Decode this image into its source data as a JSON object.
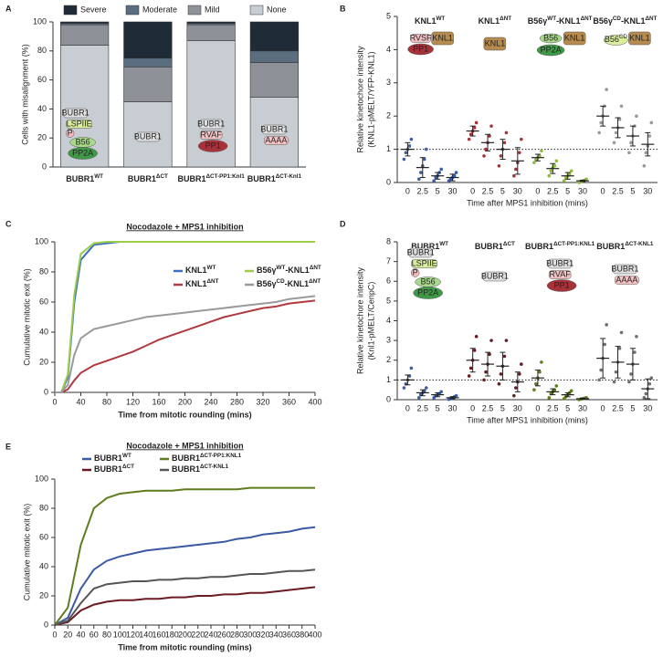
{
  "chart_data": [
    {
      "panel_label": "A",
      "type": "stacked_bar",
      "ylabel": "Cells with misalignment (%)",
      "ylim": [
        0,
        100
      ],
      "yticks": [
        0,
        20,
        40,
        60,
        80,
        100
      ],
      "categories": [
        [
          "BUBR1",
          "WT"
        ],
        [
          "BUBR1",
          "ΔCT"
        ],
        [
          "BUBR1",
          "ΔCT-PP1:Knl1"
        ],
        [
          "BUBR1",
          "ΔCT-Knl1"
        ]
      ],
      "category_colors": [
        "#3a5fa8",
        "#6b1c22",
        "#5f7d1e",
        "#707070"
      ],
      "series": [
        {
          "name": "None",
          "color": "#c8cdd4",
          "values": [
            84,
            45,
            87,
            48
          ]
        },
        {
          "name": "Mild",
          "color": "#8e9298",
          "values": [
            14,
            24,
            11,
            24
          ]
        },
        {
          "name": "Moderate",
          "color": "#5a6e80",
          "values": [
            1,
            6,
            1,
            8
          ]
        },
        {
          "name": "Severe",
          "color": "#1f2b37",
          "values": [
            1,
            25,
            1,
            20
          ]
        }
      ],
      "cartoon_labels": [
        [
          "BUBR1",
          "LSPIIE",
          "P",
          "B56",
          "PP2A"
        ],
        [
          "BUBR1"
        ],
        [
          "BUBR1",
          "RVAF",
          "PP1"
        ],
        [
          "BUBR1",
          "AAAA"
        ]
      ]
    },
    {
      "panel_label": "B",
      "type": "dot_plot",
      "ylabel": [
        "Relative kinetochore intensity",
        "(KNL1-pMELT/YFP-KNL1)"
      ],
      "xlabel": "Time after MPS1 inhibition (mins)",
      "ylim": [
        0,
        5
      ],
      "yticks": [
        0,
        1,
        2,
        3,
        4,
        5
      ],
      "reference_line": 1,
      "categories": [
        "0",
        "2.5",
        "5",
        "30"
      ],
      "groups": [
        {
          "name": [
            "KNL1",
            "WT"
          ],
          "color": "#3a5fa8",
          "means": [
            1.0,
            0.45,
            0.2,
            0.15
          ],
          "errors": [
            0.2,
            0.3,
            0.1,
            0.1
          ],
          "points": [
            [
              0.7,
              0.9,
              1.0,
              1.1,
              1.3
            ],
            [
              0.1,
              0.3,
              0.5,
              0.7,
              1.0
            ],
            [
              0.05,
              0.15,
              0.2,
              0.3,
              0.4
            ],
            [
              0.05,
              0.1,
              0.15,
              0.2,
              0.3
            ]
          ]
        },
        {
          "name": [
            "KNL1",
            "ΔNT"
          ],
          "color": "#a8323a",
          "means": [
            1.55,
            1.2,
            1.0,
            0.65
          ],
          "errors": [
            0.15,
            0.25,
            0.3,
            0.4
          ],
          "points": [
            [
              1.3,
              1.45,
              1.55,
              1.65,
              1.8
            ],
            [
              0.8,
              1.0,
              1.2,
              1.4,
              1.7
            ],
            [
              0.5,
              0.8,
              1.0,
              1.2,
              1.5
            ],
            [
              0.2,
              0.4,
              0.6,
              0.9,
              1.3
            ]
          ]
        },
        {
          "name": [
            "B56γ",
            "WT",
            "-KNL1",
            "ΔNT"
          ],
          "color": "#8fba3c",
          "means": [
            0.75,
            0.42,
            0.2,
            0.05
          ],
          "errors": [
            0.1,
            0.15,
            0.1,
            0.02
          ],
          "points": [
            [
              0.6,
              0.7,
              0.75,
              0.8,
              0.95
            ],
            [
              0.2,
              0.35,
              0.45,
              0.5,
              0.65
            ],
            [
              0.05,
              0.15,
              0.2,
              0.25,
              0.35
            ],
            [
              0.0,
              0.02,
              0.05,
              0.07,
              0.1
            ]
          ]
        },
        {
          "name": [
            "B56γ",
            "CD",
            "-KNL1",
            "ΔNT"
          ],
          "color": "#9a9a9a",
          "means": [
            2.0,
            1.65,
            1.4,
            1.15
          ],
          "errors": [
            0.3,
            0.3,
            0.3,
            0.35
          ],
          "points": [
            [
              1.5,
              1.8,
              2.0,
              2.3,
              2.8
            ],
            [
              1.2,
              1.5,
              1.65,
              1.9,
              2.3
            ],
            [
              0.9,
              1.2,
              1.4,
              1.7,
              2.0
            ],
            [
              0.5,
              0.9,
              1.1,
              1.4,
              1.8
            ]
          ]
        }
      ],
      "cartoon_labels": [
        [
          "RVSF",
          "PP1",
          "KNL1"
        ],
        [
          "KNL1"
        ],
        [
          "B56",
          "PP2A",
          "KNL1"
        ],
        [
          [
            "B56",
            "CD"
          ],
          "KNL1"
        ]
      ]
    },
    {
      "panel_label": "C",
      "type": "line",
      "title": "Nocodazole + MPS1 inhibition",
      "xlabel": "Time from mitotic rounding (mins)",
      "ylabel": "Cumulative mitotic exit (%)",
      "xlim": [
        0,
        400
      ],
      "xticks": [
        0,
        40,
        80,
        120,
        160,
        200,
        240,
        280,
        320,
        360,
        400
      ],
      "ylim": [
        0,
        100
      ],
      "yticks": [
        0,
        20,
        40,
        60,
        80,
        100
      ],
      "x": [
        0,
        10,
        20,
        30,
        40,
        60,
        80,
        100,
        120,
        140,
        160,
        180,
        200,
        220,
        240,
        260,
        280,
        300,
        320,
        340,
        360,
        380,
        400
      ],
      "series": [
        {
          "name": [
            "KNL1",
            "WT"
          ],
          "color": "#3a6fc0",
          "values": [
            0,
            0,
            10,
            60,
            88,
            98,
            99,
            100,
            100,
            100,
            100,
            100,
            100,
            100,
            100,
            100,
            100,
            null,
            null,
            null,
            null,
            null,
            null
          ]
        },
        {
          "name": [
            "B56γ",
            "WT",
            "-KNL1",
            "ΔNT"
          ],
          "color": "#9ccc4a",
          "values": [
            0,
            0,
            12,
            65,
            92,
            99,
            100,
            100,
            100,
            100,
            100,
            100,
            100,
            100,
            100,
            100,
            100,
            100,
            100,
            100,
            100,
            100,
            100
          ]
        },
        {
          "name": [
            "KNL1",
            "ΔNT"
          ],
          "color": "#b03a3f",
          "values": [
            0,
            0,
            2,
            8,
            13,
            18,
            21,
            24,
            27,
            31,
            35,
            38,
            41,
            44,
            47,
            50,
            52,
            54,
            56,
            57,
            59,
            60,
            61
          ]
        },
        {
          "name": [
            "B56γ",
            "CD",
            "-KNL1",
            "ΔNT"
          ],
          "color": "#9a9a9a",
          "values": [
            0,
            0,
            5,
            25,
            36,
            42,
            44,
            46,
            48,
            50,
            51,
            52,
            53,
            54,
            55,
            56,
            57,
            58,
            59,
            60,
            62,
            63,
            64
          ]
        }
      ]
    },
    {
      "panel_label": "D",
      "type": "dot_plot",
      "ylabel": [
        "Relative kinetochore intensity",
        "(Knl1-pMELT/CenpC)"
      ],
      "xlabel": "Time after MPS1 inhibition (mins)",
      "ylim": [
        0,
        8
      ],
      "yticks": [
        0,
        1,
        2,
        3,
        4,
        5,
        6,
        7,
        8
      ],
      "reference_line": 1,
      "categories": [
        "0",
        "2.5",
        "5",
        "30"
      ],
      "groups": [
        {
          "name": [
            "BUBR1",
            "WT"
          ],
          "color": "#3a5fa8",
          "means": [
            1.0,
            0.35,
            0.25,
            0.1
          ],
          "errors": [
            0.25,
            0.15,
            0.1,
            0.05
          ],
          "points": [
            [
              0.6,
              0.8,
              1.0,
              1.2,
              1.6
            ],
            [
              0.1,
              0.25,
              0.35,
              0.45,
              0.6
            ],
            [
              0.1,
              0.2,
              0.25,
              0.3,
              0.4
            ],
            [
              0.02,
              0.05,
              0.1,
              0.15,
              0.2
            ]
          ]
        },
        {
          "name": [
            "BUBR1",
            "ΔCT"
          ],
          "color": "#6b1c22",
          "means": [
            2.0,
            1.8,
            1.7,
            0.9
          ],
          "errors": [
            0.6,
            0.6,
            0.7,
            0.5
          ],
          "points": [
            [
              1.2,
              1.6,
              2.0,
              2.5,
              3.2
            ],
            [
              1.0,
              1.4,
              1.8,
              2.3,
              3.0
            ],
            [
              0.8,
              1.3,
              1.7,
              2.2,
              3.0
            ],
            [
              0.2,
              0.6,
              0.9,
              1.3,
              1.8
            ]
          ]
        },
        {
          "name": [
            "BUBR1",
            "ΔCT-PP1:KNL1"
          ],
          "color": "#5f7d1e",
          "means": [
            1.1,
            0.4,
            0.25,
            0.05
          ],
          "errors": [
            0.4,
            0.15,
            0.1,
            0.03
          ],
          "points": [
            [
              0.5,
              0.8,
              1.1,
              1.4,
              1.9
            ],
            [
              0.1,
              0.3,
              0.4,
              0.5,
              0.7
            ],
            [
              0.05,
              0.15,
              0.25,
              0.35,
              0.45
            ],
            [
              0.0,
              0.03,
              0.05,
              0.07,
              0.1
            ]
          ]
        },
        {
          "name": [
            "BUBR1",
            "ΔCT-KNL1"
          ],
          "color": "#707070",
          "means": [
            2.1,
            1.9,
            1.8,
            0.55
          ],
          "errors": [
            1.0,
            0.8,
            0.8,
            0.5
          ],
          "points": [
            [
              1.0,
              1.5,
              2.1,
              2.8,
              3.8
            ],
            [
              0.9,
              1.4,
              1.9,
              2.6,
              3.4
            ],
            [
              0.9,
              1.3,
              1.8,
              2.4,
              3.2
            ],
            [
              0.1,
              0.3,
              0.55,
              0.8,
              1.1
            ]
          ]
        }
      ],
      "cartoon_labels": [
        [
          "BUBR1",
          "LSPIIE",
          "P",
          "B56",
          "PP2A"
        ],
        [
          "BUBR1"
        ],
        [
          "BUBR1",
          "RVAF",
          "PP1"
        ],
        [
          "BUBR1",
          "AAAA"
        ]
      ]
    },
    {
      "panel_label": "E",
      "type": "line",
      "title": "Nocodazole + MPS1 inhibition",
      "xlabel": "Time from mitotic rounding (mins)",
      "ylabel": "Cumulative mitotic exit (%)",
      "xlim": [
        0,
        400
      ],
      "xticks": [
        0,
        20,
        40,
        60,
        80,
        100,
        120,
        140,
        160,
        180,
        200,
        220,
        240,
        260,
        280,
        300,
        320,
        340,
        360,
        380,
        400
      ],
      "ylim": [
        0,
        100
      ],
      "yticks": [
        0,
        20,
        40,
        60,
        80,
        100
      ],
      "x": [
        0,
        20,
        40,
        60,
        80,
        100,
        120,
        140,
        160,
        180,
        200,
        220,
        240,
        260,
        280,
        300,
        320,
        340,
        360,
        380,
        400
      ],
      "series": [
        {
          "name": [
            "BUBR1",
            "WT"
          ],
          "color": "#3b5aa3",
          "values": [
            0,
            5,
            25,
            38,
            44,
            47,
            49,
            51,
            52,
            53,
            54,
            55,
            56,
            57,
            59,
            60,
            62,
            63,
            64,
            66,
            67
          ]
        },
        {
          "name": [
            "BUBR1",
            "ΔCT-PP1:KNL1"
          ],
          "color": "#5f7d1e",
          "values": [
            0,
            12,
            55,
            80,
            87,
            90,
            91,
            92,
            92,
            92,
            93,
            93,
            93,
            93,
            93,
            94,
            94,
            94,
            94,
            94,
            94
          ]
        },
        {
          "name": [
            "BUBR1",
            "ΔCT"
          ],
          "color": "#6b1c22",
          "values": [
            0,
            2,
            10,
            14,
            16,
            17,
            17,
            18,
            18,
            19,
            19,
            20,
            20,
            21,
            21,
            22,
            22,
            23,
            24,
            25,
            26
          ]
        },
        {
          "name": [
            "BUBR1",
            "ΔCT-KNL1"
          ],
          "color": "#555555",
          "values": [
            0,
            3,
            15,
            25,
            28,
            29,
            30,
            30,
            31,
            31,
            32,
            32,
            33,
            33,
            34,
            35,
            35,
            36,
            37,
            37,
            38
          ]
        }
      ]
    }
  ]
}
